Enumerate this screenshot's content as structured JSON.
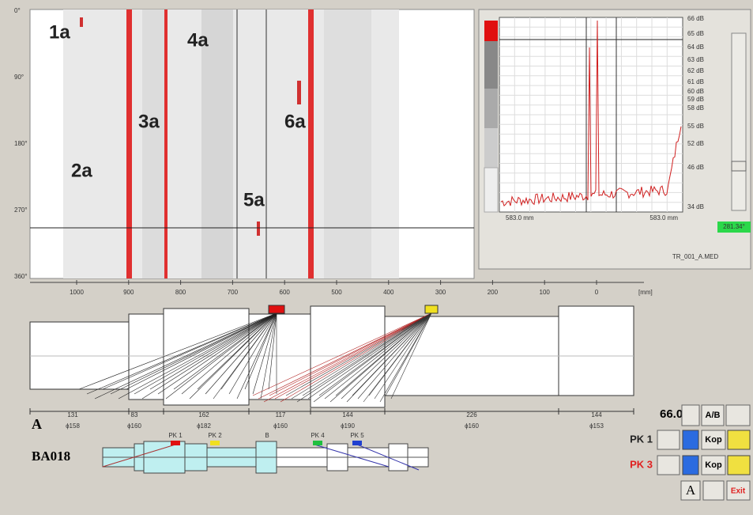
{
  "scan": {
    "axis_labels": [
      "0°",
      "90°",
      "180°",
      "270°",
      "360°"
    ],
    "defect_labels": [
      "1a",
      "2a",
      "3a",
      "4a",
      "5a",
      "6a"
    ],
    "scale_labels": [
      "1000",
      "900",
      "800",
      "700",
      "600",
      "500",
      "400",
      "300",
      "200",
      "100",
      "0"
    ],
    "scale_unit": "[mm]"
  },
  "spectrum": {
    "db_labels": [
      "66 dB",
      "65 dB",
      "64 dB",
      "63 dB",
      "62 dB",
      "61 dB",
      "60 dB",
      "59 dB",
      "58 dB",
      "55 dB",
      "52 dB",
      "46 dB",
      "34 dB"
    ],
    "range_left": "583.0 mm",
    "range_right": "583.0 mm",
    "angle": "281.34°",
    "file": "TR_001_A.MED"
  },
  "shaft": {
    "lengths": [
      "131",
      "83",
      "162",
      "117",
      "144",
      "226",
      "144"
    ],
    "diameters": [
      "ϕ158",
      "ϕ160",
      "ϕ182",
      "ϕ160",
      "ϕ190",
      "ϕ160",
      "ϕ153"
    ],
    "section": "A",
    "name": "BA018",
    "probes": [
      "PK 1",
      "PK 2",
      "B",
      "PK 4",
      "PK 5"
    ]
  },
  "controls": {
    "angle": "66.0°",
    "ab": "A/B",
    "probe_1": "PK 1",
    "probe_3": "PK 3",
    "kop_1": "Kop",
    "kop_3": "Kop",
    "exit": "Exit"
  }
}
